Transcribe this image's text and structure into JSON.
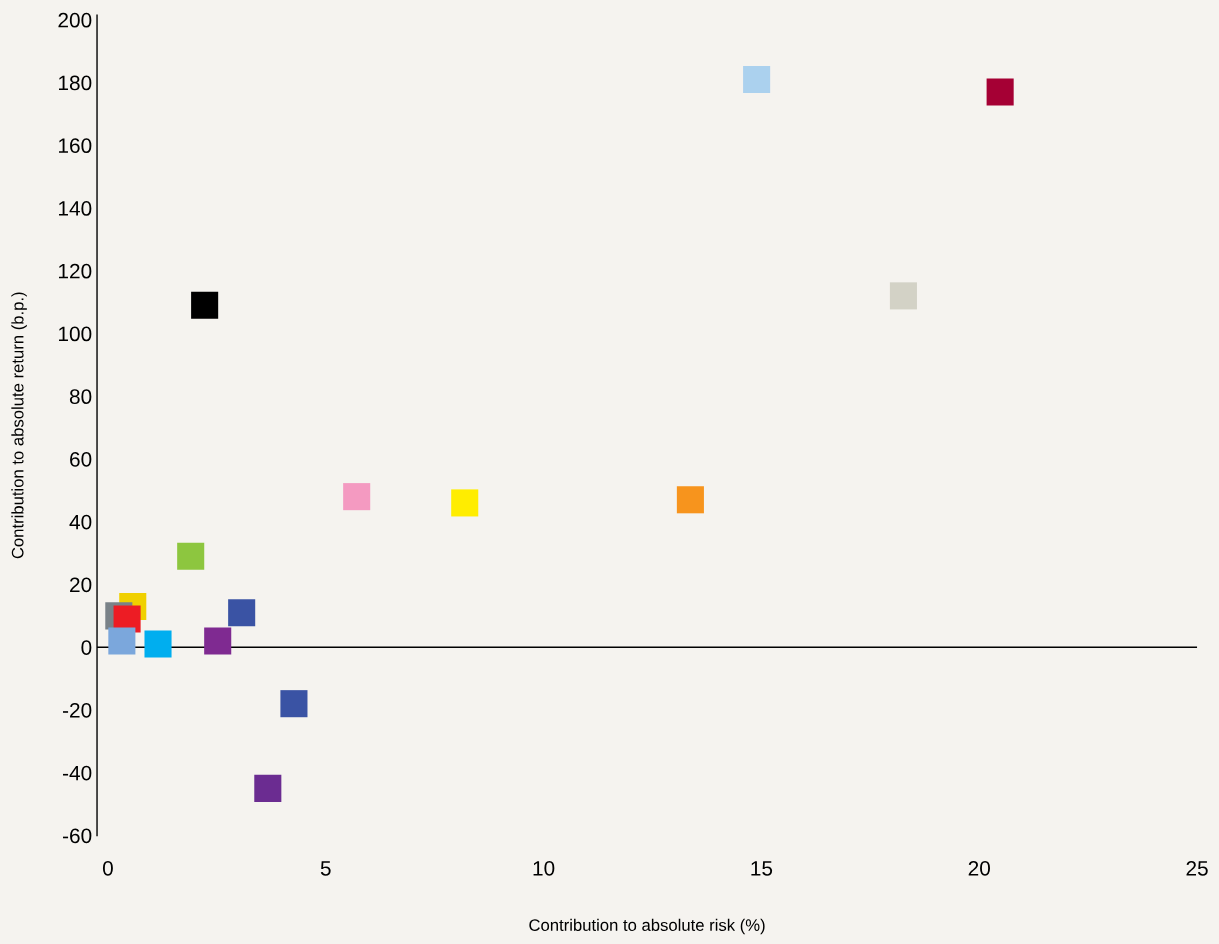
{
  "chart_data": {
    "type": "scatter",
    "xlabel": "Contribution to absolute risk (%)",
    "ylabel": "Contribution to absolute return (b.p.)",
    "xlim": [
      -0.25,
      25
    ],
    "xticks": [
      0,
      5,
      10,
      15,
      20,
      25
    ],
    "ylim": [
      -60,
      201.5
    ],
    "yticks": [
      -60,
      -40,
      -20,
      0,
      20,
      40,
      60,
      80,
      100,
      120,
      140,
      160,
      180,
      200
    ],
    "grid": false,
    "legend": false,
    "marker": "square",
    "ref_lines": [
      {
        "axis": "y",
        "value": 0,
        "color": "#000000"
      }
    ],
    "series": [
      {
        "x": [
          14.89,
          20.48,
          18.26,
          2.22,
          5.71,
          8.19,
          13.37,
          1.9,
          3.07,
          0.57,
          0.25,
          0.44,
          0.32,
          1.15,
          2.52,
          4.27,
          3.67
        ],
        "values": [
          181,
          177,
          112,
          109,
          48,
          46,
          47,
          29,
          11,
          13,
          10,
          9,
          2,
          1,
          2,
          -18,
          -45
        ],
        "colors": [
          "#abd1ee",
          "#a50034",
          "#d3d2c6",
          "#000000",
          "#f49ac1",
          "#ffed00",
          "#f7941d",
          "#8dc63f",
          "#3a53a4",
          "#f0d000",
          "#7a8288",
          "#ed1c24",
          "#7ba7dc",
          "#00aeef",
          "#7f2a91",
          "#3a53a4",
          "#6b2c91"
        ]
      }
    ]
  }
}
